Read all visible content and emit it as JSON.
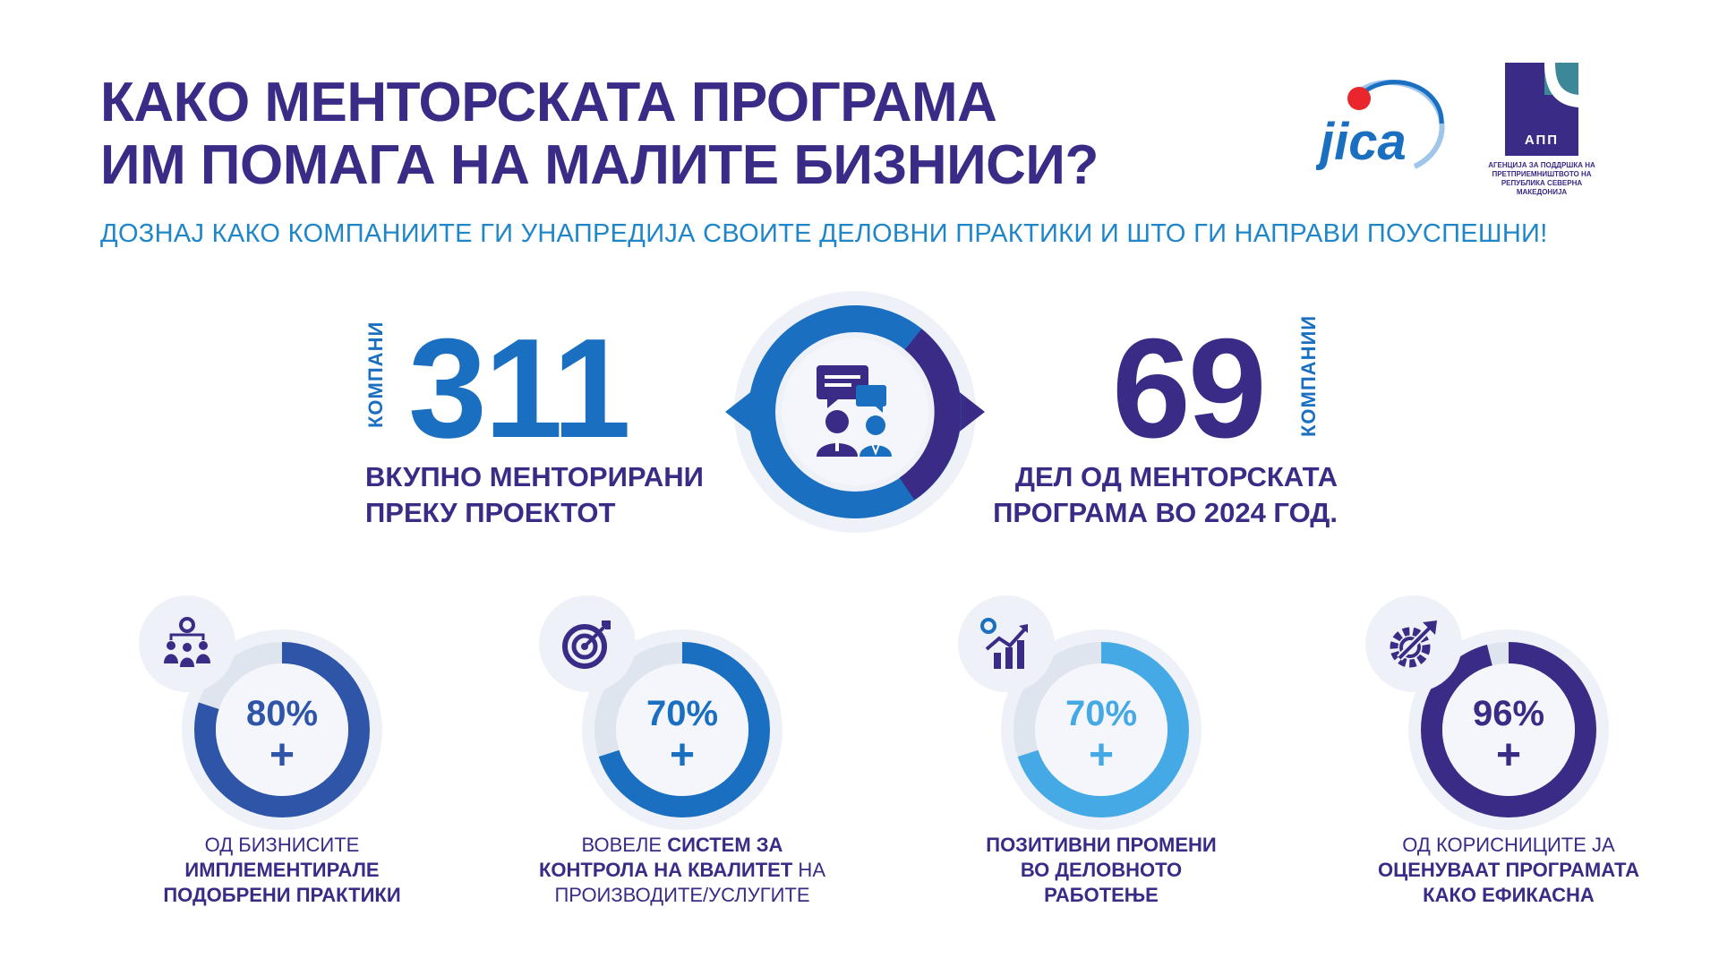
{
  "header": {
    "title_line1": "КАКО МЕНТОРСКАТА ПРОГРАМА",
    "title_line2": "ИМ ПОМАГА НА МАЛИТЕ БИЗНИСИ?",
    "subtitle": "ДОЗНАЈ КАКО КОМПАНИИТЕ ГИ УНАПРЕДИЈА СВОИТЕ ДЕЛОВНИ ПРАКТИКИ И ШТО ГИ НАПРАВИ ПОУСПЕШНИ!"
  },
  "logos": {
    "jica_text": "jica",
    "app_text": "АПП",
    "app_caption_line1": "АГЕНЦИЈА ЗА ПОДДРШКА НА",
    "app_caption_line2": "ПРЕТПРИЕМНИШТВОТО НА",
    "app_caption_line3": "РЕПУБЛИКА СЕВЕРНА МАКЕДОНИЈА"
  },
  "stats": {
    "left": {
      "unit": "КОМПАНИ",
      "value": "311",
      "caption_line1": "ВКУПНО МЕНТОРИРАНИ",
      "caption_line2": "ПРЕКУ ПРОЕКТОТ",
      "color": "#1a6fc0"
    },
    "right": {
      "unit": "КОМПАНИИ",
      "value": "69",
      "caption_line1": "ДЕЛ ОД МЕНТОРСКАТА",
      "caption_line2": "ПРОГРАМА ВО 2024 ГОД.",
      "color": "#3a2b86"
    },
    "center_icon": "mentoring-chat-icon"
  },
  "metrics": [
    {
      "percent": "80%",
      "fraction": 0.8,
      "plus": "+",
      "color": "#2f55a8",
      "icon": "team-gear-icon",
      "caption_pre": "ОД БИЗНИСИТЕ",
      "caption_bold1": "ИМПЛЕМЕНТИРАЛЕ",
      "caption_bold2": "ПОДОБРЕНИ ПРАКТИКИ",
      "caption_post": ""
    },
    {
      "percent": "70%",
      "fraction": 0.7,
      "plus": "+",
      "color": "#1a6fc0",
      "icon": "target-icon",
      "caption_pre": "ВОВЕЛЕ ",
      "caption_bold1": "СИСТЕМ ЗА",
      "caption_bold2": "КОНТРОЛА НА КВАЛИТЕТ",
      "caption_mid": " НА",
      "caption_post": "ПРОИЗВОДИТЕ/УСЛУГИТЕ"
    },
    {
      "percent": "70%",
      "fraction": 0.7,
      "plus": "+",
      "color": "#45a9e6",
      "icon": "growth-chart-icon",
      "caption_bold1": "ПОЗИТИВНИ ПРОМЕНИ",
      "caption_bold2": "ВО ДЕЛОВНОТО",
      "caption_bold3": "РАБОТЕЊЕ"
    },
    {
      "percent": "96%",
      "fraction": 0.96,
      "plus": "+",
      "color": "#3a2b86",
      "icon": "gear-arrow-icon",
      "caption_pre": "ОД КОРИСНИЦИТЕ ЈА",
      "caption_bold1": "ОЦЕНУВААТ ПРОГРАМАТА",
      "caption_bold2": "КАКО ЕФИКАСНА"
    }
  ]
}
